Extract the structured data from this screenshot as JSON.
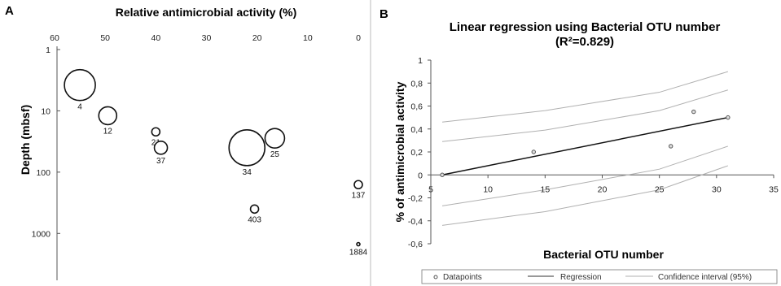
{
  "panels": {
    "a": "A",
    "b": "B"
  },
  "chart_data": [
    {
      "type": "scatter",
      "subtype": "bubble",
      "title": "",
      "xlabel": "Relative antimicrobial activity (%)",
      "ylabel": "Depth (mbsf)",
      "x_axis_position": "top",
      "x_reversed": true,
      "y_scale": "log",
      "y_reversed": true,
      "xlim": [
        0,
        60
      ],
      "ylim": [
        1,
        2000
      ],
      "x_ticks": [
        "60",
        "50",
        "40",
        "30",
        "20",
        "10",
        "0"
      ],
      "y_ticks": [
        "1",
        "10",
        "100",
        "1000"
      ],
      "grid": false,
      "points": [
        {
          "label": "4",
          "x": 55,
          "y": 3.8,
          "size": 19
        },
        {
          "label": "12",
          "x": 49.5,
          "y": 12,
          "size": 11
        },
        {
          "label": "21",
          "x": 40,
          "y": 22,
          "size": 5
        },
        {
          "label": "37",
          "x": 39,
          "y": 40,
          "size": 8
        },
        {
          "label": "34",
          "x": 22,
          "y": 40,
          "size": 22
        },
        {
          "label": "25",
          "x": 16.5,
          "y": 28,
          "size": 12
        },
        {
          "label": "403",
          "x": 20.5,
          "y": 400,
          "size": 5
        },
        {
          "label": "137",
          "x": 0,
          "y": 160,
          "size": 5
        },
        {
          "label": "1884",
          "x": 0,
          "y": 1500,
          "size": 2
        }
      ]
    },
    {
      "type": "scatter",
      "title": "Linear regression using Bacterial OTU number",
      "subtitle": "(R²=0.829)",
      "xlabel": "Bacterial OTU number",
      "ylabel": "% of antimicrobial activity",
      "xlim": [
        5,
        35
      ],
      "ylim": [
        -0.6,
        1
      ],
      "x_ticks": [
        "5",
        "10",
        "15",
        "20",
        "25",
        "30",
        "35"
      ],
      "y_ticks": [
        "-0,6",
        "-0,4",
        "-0,2",
        "0",
        "0,2",
        "0,4",
        "0,6",
        "0,8",
        "1"
      ],
      "grid": false,
      "datapoints": {
        "x": [
          6,
          14,
          26,
          28,
          31
        ],
        "y": [
          0.0,
          0.2,
          0.25,
          0.55,
          0.5
        ]
      },
      "regression": {
        "x": [
          6,
          31
        ],
        "y": [
          0.0,
          0.5
        ]
      },
      "confidence_interval": {
        "x": [
          6,
          15,
          25,
          31
        ],
        "upper_outer": [
          0.46,
          0.56,
          0.72,
          0.9
        ],
        "upper_inner": [
          0.29,
          0.39,
          0.56,
          0.74
        ],
        "lower_inner": [
          -0.27,
          -0.13,
          0.05,
          0.25
        ],
        "lower_outer": [
          -0.44,
          -0.32,
          -0.13,
          0.08
        ]
      },
      "legend": {
        "placement": "bottom",
        "entries": [
          "Datapoints",
          "Regression",
          "Confidence interval (95%)"
        ]
      },
      "colors": {
        "regression": "#111111",
        "ci": "#b0b0b0",
        "points": "#555555"
      }
    }
  ]
}
